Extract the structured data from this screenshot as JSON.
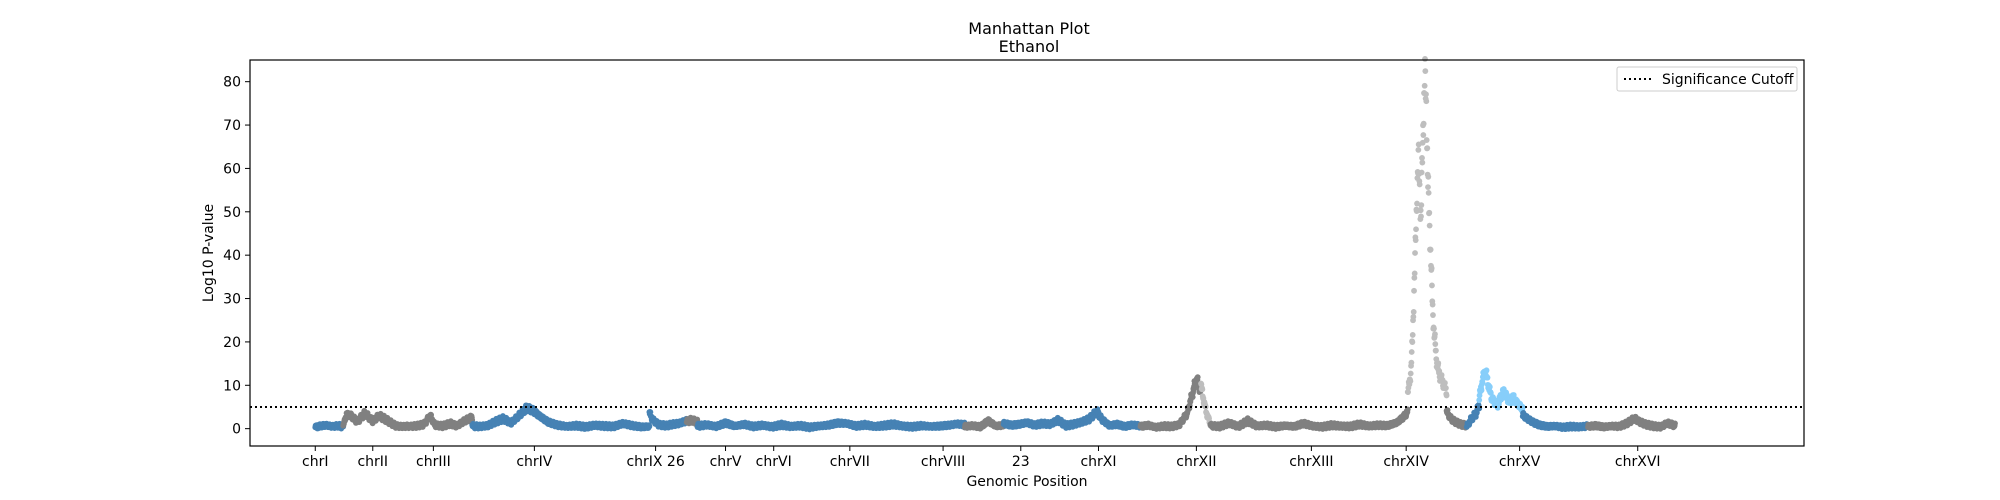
{
  "chart_data": {
    "type": "scatter",
    "title": "Manhattan Plot",
    "subtitle": "Ethanol",
    "xlabel": "Genomic Position",
    "ylabel": "Log10 P-value",
    "ylim": [
      -4,
      85
    ],
    "yticks": [
      0,
      10,
      20,
      30,
      40,
      50,
      60,
      70,
      80
    ],
    "xlim": [
      0,
      100
    ],
    "significance_cutoff": 5,
    "legend": {
      "placement": "top-right",
      "entries": [
        "Significance Cutoff"
      ]
    },
    "grid": false,
    "colors": {
      "blue": "#4682b4",
      "gray": "#808080",
      "lightgray": "#bebebe",
      "lightblue": "#87cefa"
    },
    "chromosome_labels": [
      {
        "label": "chrI",
        "x": 4.2
      },
      {
        "label": "chrII",
        "x": 7.9
      },
      {
        "label": "chrIII",
        "x": 11.8
      },
      {
        "label": "chrIV",
        "x": 18.3
      },
      {
        "label": "chrIX 26",
        "x": 26.1
      },
      {
        "label": "chrV",
        "x": 30.6
      },
      {
        "label": "chrVI",
        "x": 33.7
      },
      {
        "label": "chrVII",
        "x": 38.6
      },
      {
        "label": "chrVIII",
        "x": 44.6
      },
      {
        "label": "23",
        "x": 49.6
      },
      {
        "label": "chrXI",
        "x": 54.6
      },
      {
        "label": "chrXII",
        "x": 60.9
      },
      {
        "label": "chrXIII",
        "x": 68.3
      },
      {
        "label": "chrXIV",
        "x": 74.4
      },
      {
        "label": "chrXV",
        "x": 81.7
      },
      {
        "label": "chrXVI",
        "x": 89.3
      }
    ],
    "series": [
      {
        "color": "blue",
        "start": 4.2,
        "end": 6.0,
        "points": [
          [
            4.2,
            0.3
          ],
          [
            4.5,
            0.6
          ],
          [
            4.9,
            0.8
          ],
          [
            5.3,
            0.5
          ],
          [
            5.7,
            0.7
          ],
          [
            6.0,
            0.4
          ]
        ]
      },
      {
        "color": "gray",
        "start": 6.0,
        "end": 10.3,
        "points": [
          [
            6.0,
            0.5
          ],
          [
            6.2,
            3.3
          ],
          [
            6.5,
            3.0
          ],
          [
            6.9,
            1.6
          ],
          [
            7.4,
            3.6
          ],
          [
            7.9,
            1.7
          ],
          [
            8.3,
            3.0
          ],
          [
            8.7,
            2.2
          ],
          [
            9.0,
            1.5
          ],
          [
            9.4,
            0.6
          ],
          [
            9.8,
            0.5
          ],
          [
            10.3,
            0.6
          ]
        ]
      },
      {
        "color": "gray",
        "start": 10.3,
        "end": 14.3,
        "points": [
          [
            10.3,
            0.5
          ],
          [
            10.8,
            0.7
          ],
          [
            11.2,
            1.0
          ],
          [
            11.6,
            3.0
          ],
          [
            11.9,
            0.8
          ],
          [
            12.4,
            0.6
          ],
          [
            12.9,
            1.2
          ],
          [
            13.3,
            0.6
          ],
          [
            13.8,
            1.8
          ],
          [
            14.3,
            2.6
          ]
        ]
      },
      {
        "color": "blue",
        "start": 14.3,
        "end": 25.7,
        "points": [
          [
            14.3,
            0.6
          ],
          [
            14.8,
            0.5
          ],
          [
            15.3,
            0.7
          ],
          [
            15.8,
            1.6
          ],
          [
            16.3,
            2.3
          ],
          [
            16.8,
            1.3
          ],
          [
            17.3,
            3.0
          ],
          [
            17.8,
            4.8
          ],
          [
            18.2,
            4.2
          ],
          [
            18.6,
            3.0
          ],
          [
            19.2,
            1.5
          ],
          [
            19.8,
            0.8
          ],
          [
            20.4,
            0.5
          ],
          [
            21.0,
            0.7
          ],
          [
            21.6,
            0.4
          ],
          [
            22.2,
            0.8
          ],
          [
            22.8,
            0.6
          ],
          [
            23.4,
            0.5
          ],
          [
            24.0,
            1.2
          ],
          [
            24.6,
            0.7
          ],
          [
            25.2,
            0.4
          ],
          [
            25.7,
            0.5
          ]
        ]
      },
      {
        "color": "blue",
        "start": 25.7,
        "end": 28.1,
        "points": [
          [
            25.7,
            3.7
          ],
          [
            25.9,
            2.1
          ],
          [
            26.3,
            0.9
          ],
          [
            26.8,
            0.7
          ],
          [
            27.2,
            1.0
          ],
          [
            27.6,
            1.2
          ],
          [
            28.1,
            1.8
          ]
        ]
      },
      {
        "color": "gray",
        "start": 28.1,
        "end": 28.8,
        "points": [
          [
            28.1,
            1.6
          ],
          [
            28.4,
            2.0
          ],
          [
            28.8,
            1.5
          ]
        ]
      },
      {
        "color": "blue",
        "start": 28.8,
        "end": 46.0,
        "points": [
          [
            28.8,
            0.6
          ],
          [
            29.4,
            0.9
          ],
          [
            30.0,
            0.5
          ],
          [
            30.6,
            1.3
          ],
          [
            31.2,
            0.6
          ],
          [
            31.8,
            1.0
          ],
          [
            32.4,
            0.5
          ],
          [
            33.0,
            0.8
          ],
          [
            33.6,
            0.4
          ],
          [
            34.2,
            0.9
          ],
          [
            34.8,
            0.5
          ],
          [
            35.4,
            0.7
          ],
          [
            36.0,
            0.3
          ],
          [
            36.6,
            0.6
          ],
          [
            37.2,
            0.8
          ],
          [
            37.8,
            1.3
          ],
          [
            38.4,
            1.2
          ],
          [
            39.0,
            0.6
          ],
          [
            39.6,
            0.9
          ],
          [
            40.2,
            0.5
          ],
          [
            40.8,
            0.7
          ],
          [
            41.4,
            1.0
          ],
          [
            42.0,
            0.6
          ],
          [
            42.6,
            0.4
          ],
          [
            43.2,
            0.7
          ],
          [
            43.8,
            0.5
          ],
          [
            44.4,
            0.6
          ],
          [
            45.0,
            0.8
          ],
          [
            45.5,
            1.1
          ],
          [
            46.0,
            0.9
          ]
        ]
      },
      {
        "color": "gray",
        "start": 46.0,
        "end": 48.5,
        "points": [
          [
            46.0,
            0.5
          ],
          [
            46.5,
            0.7
          ],
          [
            47.0,
            0.4
          ],
          [
            47.5,
            1.8
          ],
          [
            48.0,
            0.6
          ],
          [
            48.5,
            0.8
          ]
        ]
      },
      {
        "color": "blue",
        "start": 48.5,
        "end": 57.3,
        "points": [
          [
            48.5,
            1.2
          ],
          [
            49.0,
            0.8
          ],
          [
            49.5,
            1.0
          ],
          [
            50.0,
            1.4
          ],
          [
            50.5,
            0.8
          ],
          [
            51.0,
            1.2
          ],
          [
            51.5,
            1.0
          ],
          [
            52.0,
            2.0
          ],
          [
            52.5,
            0.7
          ],
          [
            53.0,
            1.0
          ],
          [
            53.5,
            1.5
          ],
          [
            54.0,
            2.2
          ],
          [
            54.5,
            4.0
          ],
          [
            54.8,
            2.2
          ],
          [
            55.3,
            0.7
          ],
          [
            55.8,
            1.0
          ],
          [
            56.3,
            0.5
          ],
          [
            56.8,
            0.9
          ],
          [
            57.3,
            0.6
          ]
        ]
      },
      {
        "color": "gray",
        "start": 57.3,
        "end": 61.2,
        "points": [
          [
            57.3,
            0.5
          ],
          [
            57.8,
            0.8
          ],
          [
            58.3,
            0.3
          ],
          [
            58.8,
            0.6
          ],
          [
            59.3,
            0.5
          ],
          [
            59.8,
            0.9
          ],
          [
            60.3,
            3.5
          ],
          [
            60.6,
            7.5
          ],
          [
            60.9,
            11.5
          ],
          [
            61.2,
            8.5
          ]
        ]
      },
      {
        "color": "lightgray",
        "start": 61.2,
        "end": 61.8,
        "points": [
          [
            61.2,
            10.0
          ],
          [
            61.4,
            6.0
          ],
          [
            61.6,
            3.0
          ],
          [
            61.8,
            1.2
          ]
        ]
      },
      {
        "color": "gray",
        "start": 61.8,
        "end": 74.5,
        "points": [
          [
            61.8,
            0.7
          ],
          [
            62.4,
            0.5
          ],
          [
            63.0,
            1.3
          ],
          [
            63.6,
            0.5
          ],
          [
            64.2,
            1.8
          ],
          [
            64.8,
            0.6
          ],
          [
            65.4,
            0.8
          ],
          [
            66.0,
            0.4
          ],
          [
            66.6,
            0.7
          ],
          [
            67.2,
            0.5
          ],
          [
            67.8,
            1.2
          ],
          [
            68.4,
            0.6
          ],
          [
            69.0,
            0.4
          ],
          [
            69.6,
            0.8
          ],
          [
            70.2,
            0.6
          ],
          [
            70.8,
            0.5
          ],
          [
            71.4,
            1.0
          ],
          [
            72.0,
            0.6
          ],
          [
            72.6,
            0.8
          ],
          [
            73.2,
            0.7
          ],
          [
            73.8,
            1.4
          ],
          [
            74.2,
            2.6
          ],
          [
            74.5,
            3.8
          ]
        ]
      },
      {
        "color": "lightgray",
        "start": 74.5,
        "end": 77.0,
        "points": [
          [
            74.5,
            8.0
          ],
          [
            74.7,
            13.0
          ],
          [
            74.8,
            20.0
          ],
          [
            74.9,
            31.0
          ],
          [
            75.0,
            42.0
          ],
          [
            75.1,
            56.0
          ],
          [
            75.2,
            62.0
          ],
          [
            75.35,
            48.0
          ],
          [
            75.5,
            72.0
          ],
          [
            75.6,
            80.5
          ],
          [
            75.7,
            75.0
          ],
          [
            75.8,
            56.0
          ],
          [
            75.9,
            48.0
          ],
          [
            76.0,
            38.0
          ],
          [
            76.1,
            28.0
          ],
          [
            76.2,
            22.0
          ],
          [
            76.35,
            16.0
          ],
          [
            76.5,
            13.0
          ],
          [
            76.7,
            11.0
          ],
          [
            76.85,
            10.0
          ],
          [
            77.0,
            8.5
          ]
        ]
      },
      {
        "color": "gray",
        "start": 77.0,
        "end": 78.3,
        "points": [
          [
            77.0,
            4.0
          ],
          [
            77.3,
            2.2
          ],
          [
            77.6,
            1.5
          ],
          [
            77.9,
            1.0
          ],
          [
            78.3,
            0.7
          ]
        ]
      },
      {
        "color": "blue",
        "start": 78.3,
        "end": 79.1,
        "points": [
          [
            78.3,
            0.5
          ],
          [
            78.6,
            2.3
          ],
          [
            78.9,
            3.5
          ],
          [
            79.1,
            5.5
          ]
        ]
      },
      {
        "color": "lightblue",
        "start": 79.1,
        "end": 81.9,
        "points": [
          [
            79.1,
            7.0
          ],
          [
            79.3,
            11.0
          ],
          [
            79.5,
            13.5
          ],
          [
            79.7,
            10.0
          ],
          [
            79.9,
            7.0
          ],
          [
            80.1,
            6.0
          ],
          [
            80.3,
            5.5
          ],
          [
            80.5,
            7.5
          ],
          [
            80.7,
            8.5
          ],
          [
            80.9,
            7.0
          ],
          [
            81.1,
            6.3
          ],
          [
            81.3,
            7.2
          ],
          [
            81.5,
            6.0
          ],
          [
            81.7,
            5.3
          ],
          [
            81.9,
            4.5
          ]
        ]
      },
      {
        "color": "blue",
        "start": 81.9,
        "end": 86.1,
        "points": [
          [
            81.9,
            3.2
          ],
          [
            82.2,
            2.3
          ],
          [
            82.6,
            1.4
          ],
          [
            83.0,
            0.8
          ],
          [
            83.5,
            0.5
          ],
          [
            84.0,
            0.6
          ],
          [
            84.5,
            0.3
          ],
          [
            85.0,
            0.5
          ],
          [
            85.5,
            0.4
          ],
          [
            86.1,
            0.6
          ]
        ]
      },
      {
        "color": "gray",
        "start": 86.1,
        "end": 91.7,
        "points": [
          [
            86.1,
            0.5
          ],
          [
            86.6,
            0.7
          ],
          [
            87.1,
            0.4
          ],
          [
            87.6,
            0.6
          ],
          [
            88.1,
            0.5
          ],
          [
            88.6,
            1.2
          ],
          [
            89.1,
            2.4
          ],
          [
            89.4,
            1.6
          ],
          [
            89.8,
            1.0
          ],
          [
            90.3,
            0.6
          ],
          [
            90.8,
            0.4
          ],
          [
            91.2,
            1.3
          ],
          [
            91.7,
            0.7
          ]
        ]
      }
    ]
  }
}
